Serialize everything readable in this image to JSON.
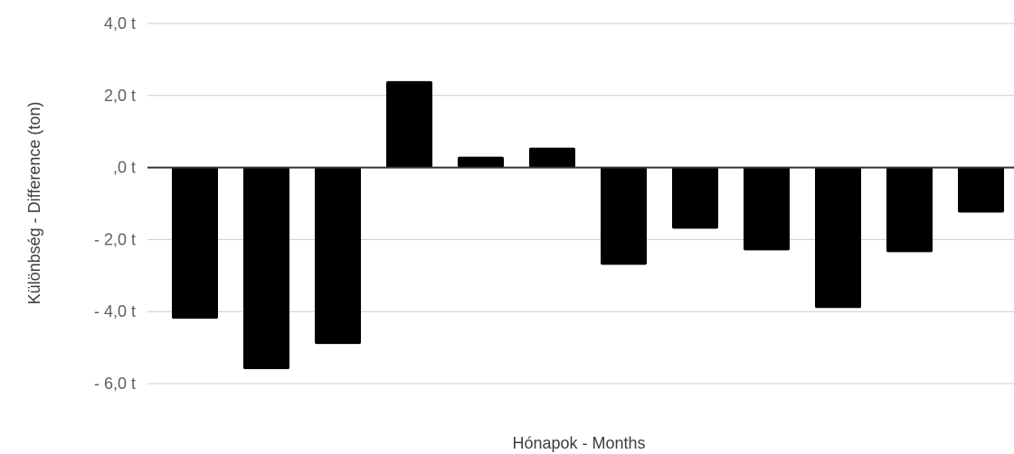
{
  "chart_data": {
    "type": "bar",
    "title": "",
    "xlabel": "Hónapok - Months",
    "ylabel": "Különbség - Difference (ton)",
    "categories": [
      "",
      "",
      "",
      "",
      "",
      "",
      "",
      "",
      "",
      "",
      "",
      ""
    ],
    "values": [
      -4.2,
      -5.6,
      -4.9,
      2.4,
      0.3,
      0.55,
      -2.7,
      -1.7,
      -2.3,
      -3.9,
      -2.35,
      -1.25
    ],
    "ylim": [
      -6,
      4
    ],
    "yticks": [
      4,
      2,
      0,
      -2,
      -4,
      -6
    ],
    "ytick_labels": [
      "4,0  t",
      "2,0  t",
      ",0  t",
      "-  2,0  t",
      "-  4,0  t",
      "-  6,0  t"
    ],
    "grid": true,
    "legend": "none",
    "colors": {
      "bar": "#000000",
      "grid": "#cccccc",
      "zero_line": "#333333"
    }
  }
}
